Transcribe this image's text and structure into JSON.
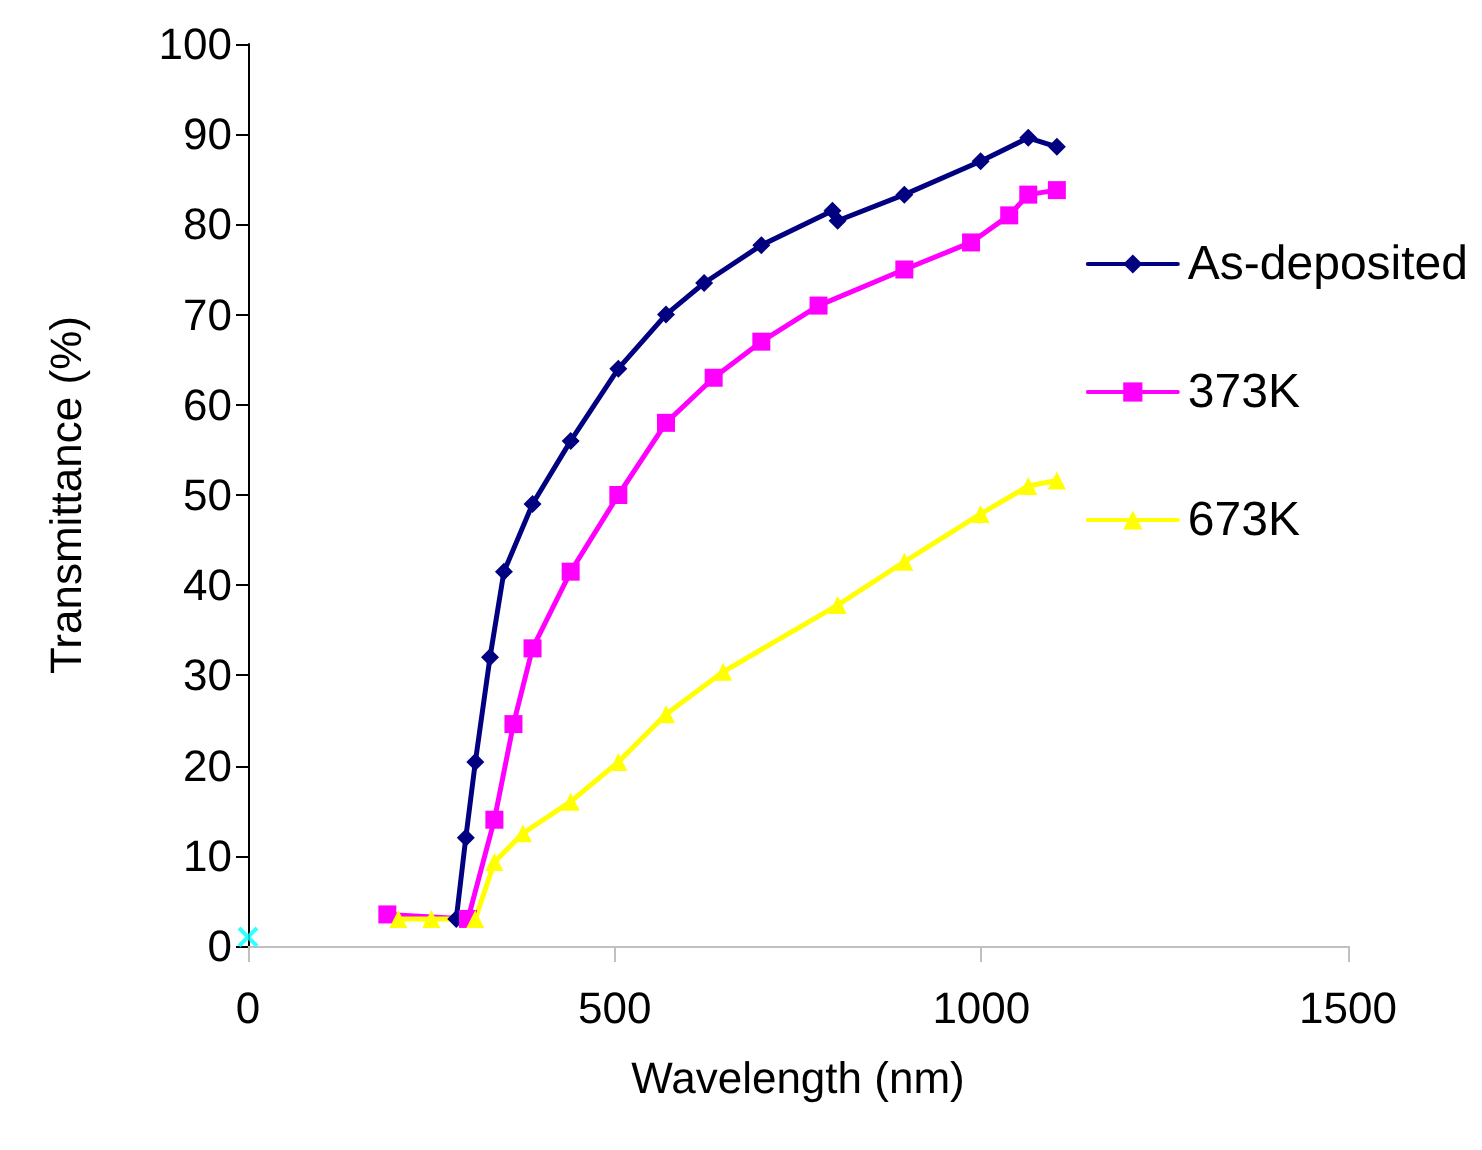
{
  "chart_data": {
    "type": "line",
    "xlabel": "Wavelength (nm)",
    "ylabel": "Transmittance (%)",
    "xlim": [
      0,
      1500
    ],
    "xticks": [
      0,
      500,
      1000,
      1500
    ],
    "ylim": [
      0,
      100
    ],
    "yticks": [
      0,
      10,
      20,
      30,
      40,
      50,
      60,
      70,
      80,
      90,
      100
    ],
    "grid": false,
    "legend": "right",
    "series": [
      {
        "name": "As-deposited",
        "color": "#000080",
        "marker": "diamond",
        "x": [
          284,
          297,
          310,
          330,
          349,
          388,
          440,
          505,
          570,
          622,
          700,
          797,
          804,
          895,
          999,
          1064,
          1103
        ],
        "values": [
          3,
          12,
          20.4,
          32,
          41.5,
          49,
          56,
          64,
          70,
          73.5,
          77.7,
          81.5,
          80.4,
          83.3,
          87,
          89.6,
          88.6
        ]
      },
      {
        "name": "373K",
        "color": "#ff00ff",
        "marker": "square",
        "x": [
          190,
          300,
          336,
          362,
          388,
          440,
          505,
          570,
          635,
          700,
          778,
          895,
          986,
          1038,
          1064,
          1103
        ],
        "values": [
          3.5,
          3,
          14,
          24.6,
          33,
          41.5,
          50,
          58,
          63,
          67,
          71,
          75,
          78,
          81,
          83.3,
          83.8
        ]
      },
      {
        "name": "673K",
        "color": "#ffff00",
        "marker": "triangle",
        "x": [
          205,
          250,
          310,
          336,
          375,
          440,
          505,
          570,
          648,
          804,
          895,
          999,
          1064,
          1103
        ],
        "values": [
          3,
          3,
          3,
          9.3,
          12.5,
          16,
          20.4,
          25.7,
          30.4,
          37.8,
          42.6,
          47.9,
          51,
          51.6
        ]
      },
      {
        "type": "scatter",
        "color": "#00ffff",
        "marker": "cross",
        "x": [
          0
        ],
        "values": [
          1
        ]
      }
    ]
  }
}
